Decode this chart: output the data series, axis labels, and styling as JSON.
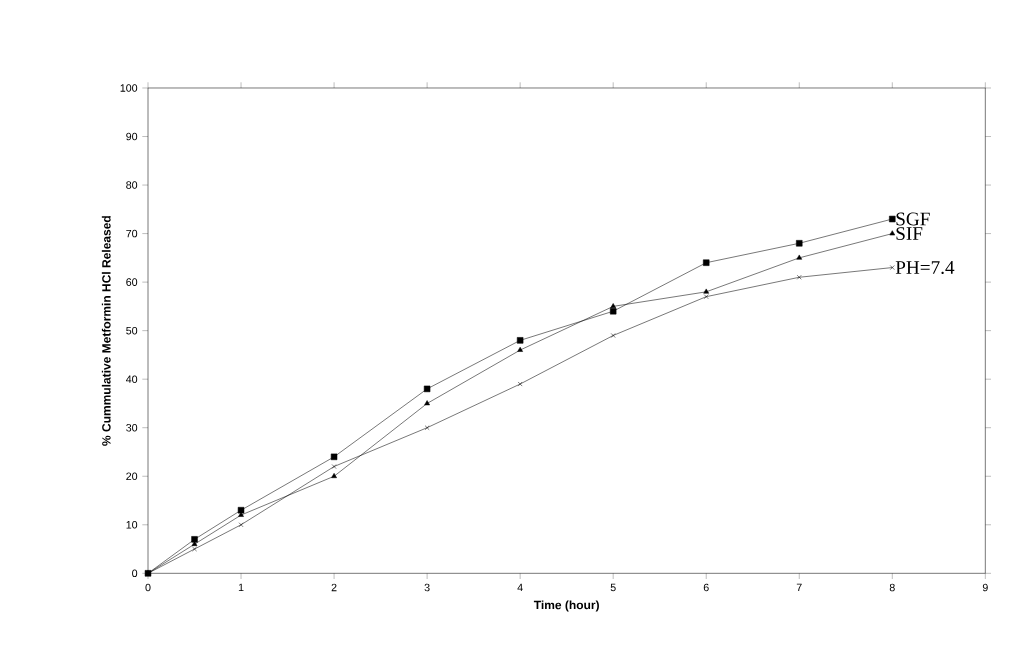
{
  "chart_data": {
    "type": "line",
    "xlabel": "Time (hour)",
    "ylabel": "% Cummulative Metformin HCl Released",
    "x": [
      0,
      0.5,
      1,
      2,
      3,
      4,
      5,
      6,
      7,
      8
    ],
    "series": [
      {
        "name": "SGF",
        "color": "#000000",
        "marker": "square",
        "values": [
          0,
          7,
          13,
          24,
          38,
          48,
          54,
          64,
          68,
          73
        ]
      },
      {
        "name": "SIF",
        "color": "#000000",
        "marker": "triangle",
        "values": [
          0,
          6,
          12,
          20,
          35,
          46,
          55,
          58,
          65,
          70
        ]
      },
      {
        "name": "PH=7.4",
        "color": "#000000",
        "marker": "cross",
        "values": [
          0,
          5,
          10,
          22,
          30,
          39,
          49,
          57,
          61,
          63
        ]
      }
    ],
    "xlim": [
      0,
      9
    ],
    "xticks": [
      0,
      1,
      2,
      3,
      4,
      5,
      6,
      7,
      8,
      9
    ],
    "ylim": [
      0,
      100
    ],
    "yticks": [
      0,
      10,
      20,
      30,
      40,
      50,
      60,
      70,
      80,
      90,
      100
    ],
    "grid": false,
    "legend": false,
    "line_style": "solid"
  }
}
